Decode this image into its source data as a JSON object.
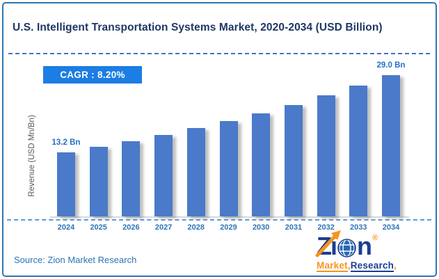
{
  "header": {
    "title": "U.S. Intelligent Transportation Systems Market, 2020-2034 (USD Billion)"
  },
  "cagr_badge": {
    "label": "CAGR : 8.20%"
  },
  "chart_data": {
    "type": "bar",
    "title": "U.S. Intelligent Transportation Systems Market, 2020-2034 (USD Billion)",
    "xlabel": "",
    "ylabel": "Revenue (USD Mn/Bn)",
    "unit": "USD Billion",
    "cagr": "8.20%",
    "grid": false,
    "legend": false,
    "ylim": [
      0,
      31
    ],
    "categories": [
      "2024",
      "2025",
      "2026",
      "2027",
      "2028",
      "2029",
      "2030",
      "2031",
      "2032",
      "2033",
      "2034"
    ],
    "values": [
      13.2,
      14.3,
      15.5,
      16.7,
      18.1,
      19.6,
      21.2,
      22.9,
      24.8,
      26.8,
      29.0
    ],
    "point_labels": [
      "13.2 Bn",
      "",
      "",
      "",
      "",
      "",
      "",
      "",
      "",
      "",
      "29.0 Bn"
    ],
    "bar_color": "#4a7ac9",
    "data_label_color": "#2570c9",
    "axis_label_color": "#2e75b6",
    "accent_dashed_line_color": "#4472c4"
  },
  "footer": {
    "source": "Source: Zion Market Research"
  },
  "logo": {
    "brand_left": "Zi",
    "brand_right": "n",
    "registered": "®",
    "sub_left": "Market",
    "comma": ",",
    "sub_right": "Research",
    "blue": "#1b3e91",
    "orange": "#f7941d"
  }
}
